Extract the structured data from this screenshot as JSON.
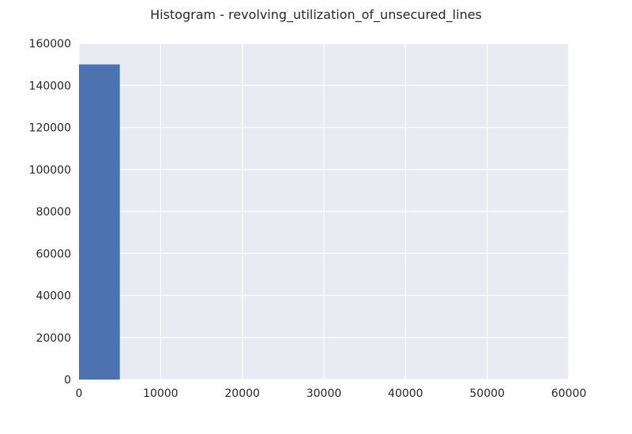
{
  "chart_data": {
    "type": "bar",
    "title": "Histogram - revolving_utilization_of_unsecured_lines",
    "xlabel": "",
    "ylabel": "",
    "xlim": [
      0,
      60000
    ],
    "ylim": [
      0,
      160000
    ],
    "x_ticks": [
      0,
      10000,
      20000,
      30000,
      40000,
      50000,
      60000
    ],
    "y_ticks": [
      0,
      20000,
      40000,
      60000,
      80000,
      100000,
      120000,
      140000,
      160000
    ],
    "grid": true,
    "bins": [
      {
        "start": 0,
        "end": 5000,
        "count": 150000
      }
    ]
  },
  "colors": {
    "plot_background": "#eaeaf2",
    "grid": "#ffffff",
    "bar": "#4c72b0",
    "text": "#262626"
  }
}
